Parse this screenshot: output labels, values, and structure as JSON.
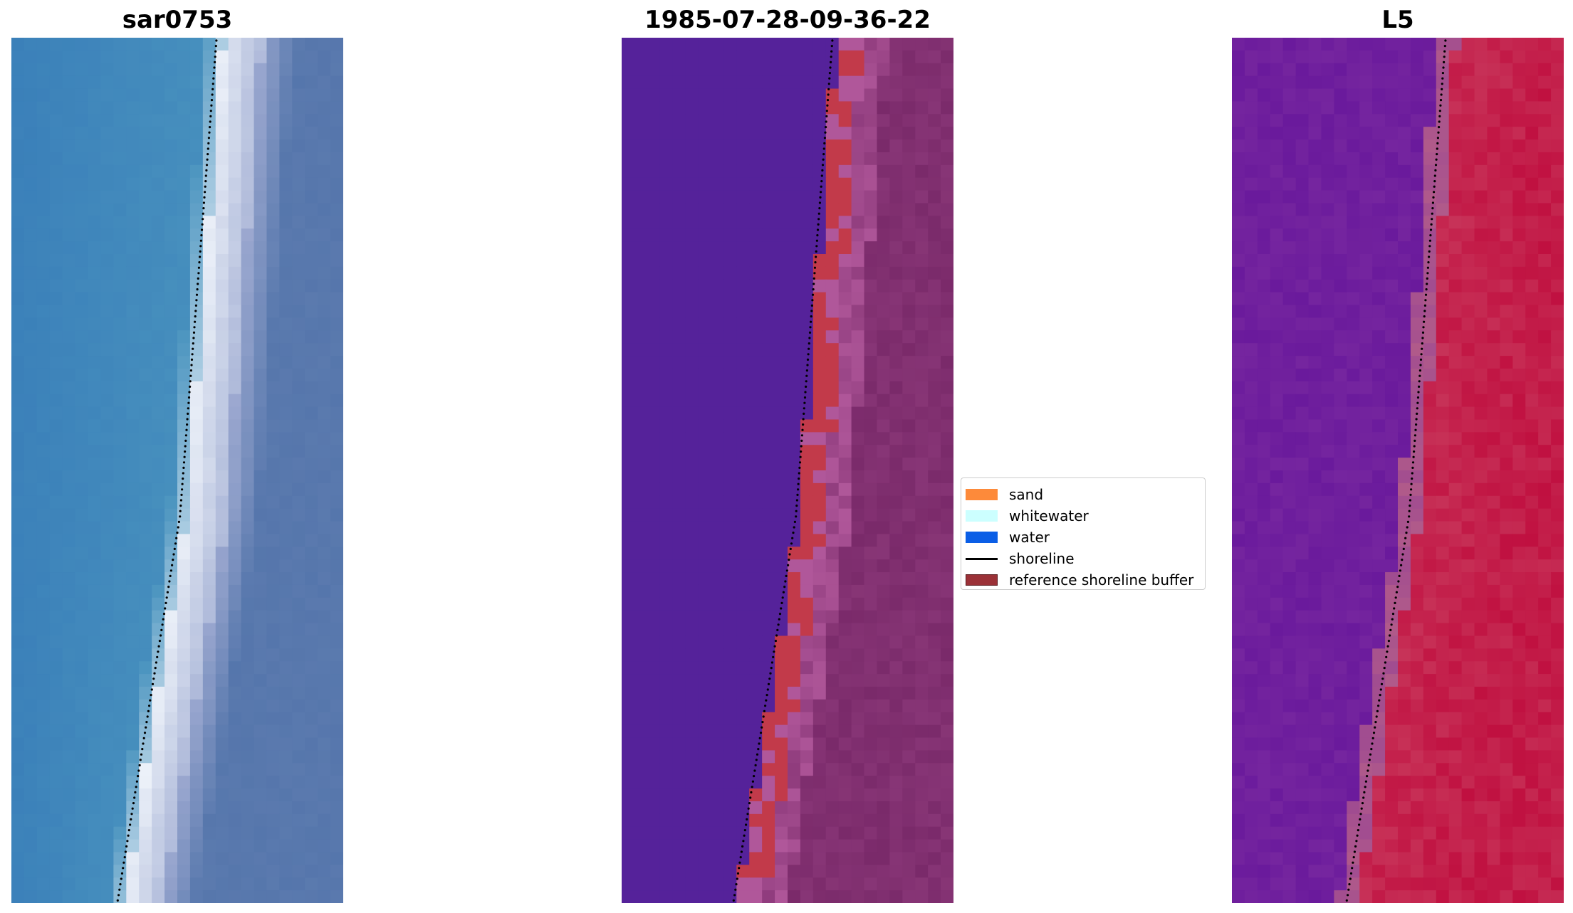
{
  "panels": [
    {
      "title": "sar0753",
      "kind": "rgb"
    },
    {
      "title": "1985-07-28-09-36-22",
      "kind": "classification"
    },
    {
      "title": "L5",
      "kind": "index"
    }
  ],
  "legend": {
    "items": [
      {
        "label": "sand",
        "color": "#fd8a3a",
        "type": "patch"
      },
      {
        "label": "whitewater",
        "color": "#ccffff",
        "type": "patch"
      },
      {
        "label": "water",
        "color": "#0a5ee6",
        "type": "patch"
      },
      {
        "label": "shoreline",
        "color": "#000000",
        "type": "line"
      },
      {
        "label": "reference shoreline buffer",
        "color": "#9b3137",
        "type": "patch"
      }
    ]
  },
  "colors": {
    "rgb_water": "#3a7fb9",
    "rgb_foam": "#e8f0f8",
    "rgb_land": "#5b7aad",
    "class_water": "#55229a",
    "class_buffer": "#c23a4a",
    "class_land": "#7a2a6a",
    "index_low": "#6a1a9c",
    "index_high": "#c01040"
  }
}
